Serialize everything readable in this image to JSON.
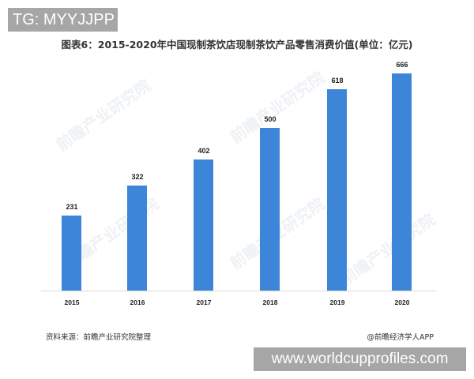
{
  "overlay": {
    "top_badge": "TG: MYYJJPP",
    "bottom_badge": "www.worldcupprofiles.com"
  },
  "footer": {
    "source": "资料来源：前瞻产业研究院整理",
    "credit": "@前瞻经济学人APP"
  },
  "watermark": "前瞻产业研究院",
  "colors": {
    "bar": "#3d85d8",
    "axis": "#d9d9d9"
  },
  "chart_data": {
    "type": "bar",
    "title": "图表6：2015-2020年中国现制茶饮店现制茶饮产品零售消费价值(单位：亿元)",
    "xlabel": "",
    "ylabel": "",
    "categories": [
      "2015",
      "2016",
      "2017",
      "2018",
      "2019",
      "2020"
    ],
    "values": [
      231,
      322,
      402,
      500,
      618,
      666
    ],
    "value_labels": [
      "231",
      "322",
      "402",
      "500",
      "618",
      "666"
    ],
    "ylim": [
      0,
      700
    ],
    "grid": false,
    "legend": null,
    "unit": "亿元"
  }
}
